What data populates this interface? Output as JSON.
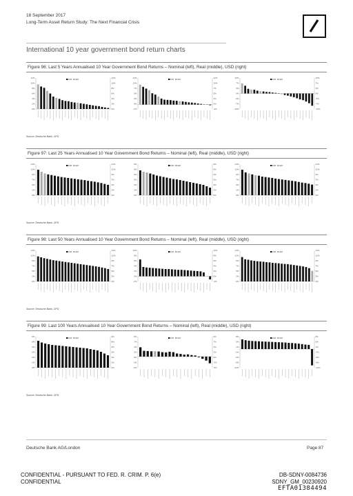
{
  "header": {
    "date": "18 September 2017",
    "subtitle": "Long-Term Asset Return Study: The Next Financial Crisis"
  },
  "section_title": "International 10 year government bond return charts",
  "figures": [
    {
      "title": "Figure 96: Last 5 Years Annualised 10 Year Government Bond Returns – Nominal (left), Real (middle), USD (right)",
      "source": "Source: Deutsche Bank, GFD"
    },
    {
      "title": "Figure 97: Last 25 Years Annualised 10 Year Government Bond Returns – Nominal (left), Real (middle), USD (right)",
      "source": "Source: Deutsche Bank, GFD"
    },
    {
      "title": "Figure 98: Last 50 Years Annualised 10 Year Government Bond Returns – Nominal (left), Real (middle), USD (right)",
      "source": "Source: Deutsche Bank, GFD"
    },
    {
      "title": "Figure 99: Last 100 Years Annualised 10 Year Government Bond Returns – Nominal (left), Real (middle), USD (right)",
      "source": "Source: Deutsche Bank, GFD"
    }
  ],
  "legend_labels": [
    "DM",
    "EM"
  ],
  "chart_data": [
    {
      "type": "bar",
      "panel": "F96 nominal",
      "ylim": [
        0,
        12
      ],
      "values": [
        9.5,
        8.7,
        8.2,
        7.0,
        6.0,
        4.8,
        4.3,
        3.9,
        3.4,
        3.1,
        3.0,
        2.7,
        2.5,
        2.4,
        2.2,
        2.0,
        1.8,
        1.6,
        1.4,
        1.2,
        1.1,
        0.8,
        0.6,
        0.4
      ],
      "colors_idx": [
        1,
        0,
        0,
        1,
        0,
        0,
        1,
        0,
        0,
        0,
        0,
        0,
        0,
        1,
        0,
        0,
        0,
        0,
        0,
        0,
        0,
        0,
        0,
        0
      ]
    },
    {
      "type": "bar",
      "panel": "F96 real",
      "ylim": [
        -2,
        12
      ],
      "values": [
        9.0,
        8.0,
        7.2,
        6.5,
        5.1,
        4.5,
        3.6,
        2.7,
        2.2,
        2.1,
        2.0,
        1.8,
        1.7,
        1.5,
        1.4,
        1.2,
        1.0,
        0.9,
        0.7,
        0.5,
        0.3,
        0.1,
        -0.1,
        -0.3
      ],
      "colors_idx": [
        1,
        0,
        0,
        1,
        0,
        0,
        1,
        0,
        0,
        0,
        0,
        0,
        0,
        1,
        0,
        0,
        0,
        0,
        0,
        0,
        0,
        0,
        0,
        0
      ]
    },
    {
      "type": "bar",
      "panel": "F96 usd",
      "ylim": [
        -10,
        10
      ],
      "values": [
        6.5,
        5.0,
        3.0,
        2.5,
        2.4,
        1.8,
        1.5,
        1.3,
        1.0,
        0.9,
        0.6,
        0.4,
        -0.2,
        -0.5,
        -1.0,
        -1.4,
        -1.9,
        -2.4,
        -3.1,
        -3.8,
        -4.3,
        -5.2,
        -6.3,
        -7.9
      ],
      "colors_idx": [
        1,
        0,
        0,
        1,
        0,
        0,
        1,
        0,
        0,
        0,
        0,
        0,
        0,
        1,
        0,
        0,
        0,
        0,
        0,
        0,
        0,
        0,
        0,
        0
      ]
    },
    {
      "type": "bar",
      "panel": "F97 nominal",
      "ylim": [
        0,
        14
      ],
      "values": [
        11.5,
        10.6,
        9.8,
        9.4,
        9.1,
        8.8,
        8.5,
        8.2,
        8.0,
        7.8,
        7.6,
        7.4,
        7.2,
        7.0,
        6.8,
        6.5,
        6.3,
        6.1,
        5.8,
        5.5,
        5.1,
        4.7
      ],
      "colors_idx": [
        0,
        1,
        1,
        0,
        0,
        0,
        0,
        0,
        0,
        0,
        0,
        0,
        0,
        0,
        0,
        0,
        0,
        0,
        0,
        0,
        0,
        0
      ]
    },
    {
      "type": "bar",
      "panel": "F97 real",
      "ylim": [
        0,
        9
      ],
      "values": [
        7.2,
        6.8,
        6.6,
        6.3,
        6.0,
        5.7,
        5.5,
        5.3,
        5.1,
        4.9,
        4.7,
        4.6,
        4.4,
        4.2,
        4.0,
        3.8,
        3.6,
        3.4,
        3.2,
        3.0,
        2.6,
        2.2
      ],
      "colors_idx": [
        0,
        1,
        1,
        0,
        0,
        0,
        0,
        0,
        0,
        0,
        0,
        0,
        0,
        0,
        0,
        0,
        0,
        0,
        0,
        0,
        0,
        0
      ]
    },
    {
      "type": "bar",
      "panel": "F97 usd",
      "ylim": [
        0,
        14
      ],
      "values": [
        11.5,
        10.3,
        9.8,
        9.4,
        9.0,
        8.8,
        8.4,
        8.2,
        8.0,
        7.8,
        7.5,
        7.3,
        7.1,
        6.9,
        6.7,
        6.5,
        6.3,
        6.0,
        5.7,
        5.5,
        5.2,
        4.8
      ],
      "colors_idx": [
        0,
        0,
        1,
        0,
        1,
        0,
        0,
        0,
        0,
        0,
        0,
        0,
        0,
        0,
        0,
        0,
        0,
        0,
        0,
        0,
        0,
        0
      ]
    },
    {
      "type": "bar",
      "panel": "F98 nominal",
      "ylim": [
        0,
        14
      ],
      "values": [
        11.3,
        10.9,
        10.5,
        10.2,
        9.9,
        9.6,
        9.4,
        9.2,
        9.0,
        8.8,
        8.6,
        8.4,
        8.2,
        8.0,
        7.8,
        7.6,
        7.4,
        7.2,
        7.0,
        6.8,
        6.6,
        6.3,
        6.0,
        5.6
      ],
      "colors_idx": [
        0,
        0,
        0,
        0,
        0,
        0,
        0,
        0,
        0,
        0,
        0,
        0,
        0,
        0,
        0,
        0,
        0,
        0,
        0,
        0,
        0,
        0,
        0,
        0
      ]
    },
    {
      "type": "bar",
      "panel": "F98 real",
      "ylim": [
        -2,
        10
      ],
      "values": [
        6.5,
        3.6,
        3.4,
        3.3,
        3.2,
        3.1,
        3.0,
        2.9,
        2.8,
        2.8,
        2.7,
        2.6,
        2.5,
        2.5,
        2.4,
        2.3,
        2.2,
        2.1,
        2.0,
        1.9,
        1.5,
        0.0,
        -1.2
      ],
      "colors_idx": [
        0,
        0,
        0,
        0,
        0,
        0,
        0,
        0,
        0,
        0,
        0,
        0,
        0,
        0,
        0,
        0,
        0,
        0,
        0,
        0,
        0,
        1,
        0
      ]
    },
    {
      "type": "bar",
      "panel": "F98 usd",
      "ylim": [
        0,
        14
      ],
      "values": [
        11.0,
        10.0,
        9.8,
        9.5,
        9.3,
        9.1,
        9.0,
        8.9,
        8.7,
        8.6,
        8.4,
        8.3,
        8.2,
        8.0,
        7.9,
        7.8,
        7.6,
        7.4,
        7.2,
        7.0,
        6.8,
        6.5,
        6.0,
        4.8
      ],
      "colors_idx": [
        0,
        0,
        0,
        0,
        0,
        0,
        0,
        0,
        0,
        0,
        0,
        0,
        0,
        0,
        0,
        0,
        0,
        0,
        0,
        0,
        0,
        0,
        0,
        1
      ]
    },
    {
      "type": "bar",
      "panel": "F99 nominal",
      "ylim": [
        0,
        9
      ],
      "values": [
        7.8,
        7.3,
        7.0,
        6.8,
        6.6,
        6.5,
        6.4,
        6.3,
        6.2,
        6.1,
        6.0,
        5.9,
        5.8,
        5.7,
        5.6,
        5.4,
        5.2,
        5.0,
        4.6,
        4.1,
        3.6
      ],
      "colors_idx": [
        0,
        0,
        0,
        0,
        0,
        0,
        0,
        0,
        0,
        0,
        0,
        0,
        0,
        0,
        0,
        0,
        0,
        0,
        0,
        0,
        0
      ]
    },
    {
      "type": "bar",
      "panel": "F99 real",
      "ylim": [
        -5,
        9
      ],
      "values": [
        4.2,
        2.6,
        2.5,
        2.4,
        2.4,
        2.3,
        2.0,
        1.9,
        2.2,
        2.0,
        1.4,
        1.2,
        0.9,
        1.0,
        0.7,
        0.5,
        -0.3,
        -1.0,
        -1.8,
        -3.0
      ],
      "colors_idx": [
        0,
        0,
        0,
        0,
        1,
        0,
        0,
        0,
        0,
        0,
        0,
        0,
        0,
        0,
        0,
        0,
        0,
        0,
        0,
        0
      ]
    },
    {
      "type": "bar",
      "panel": "F99 usd",
      "ylim": [
        -12,
        8
      ],
      "values": [
        6.2,
        5.7,
        5.4,
        5.2,
        5.1,
        5.0,
        4.9,
        4.8,
        4.7,
        4.6,
        4.5,
        4.4,
        4.3,
        4.2,
        4.0,
        3.9,
        3.7,
        3.5,
        3.2,
        2.9,
        2.7,
        -10.5
      ],
      "colors_idx": [
        0,
        0,
        0,
        0,
        0,
        0,
        0,
        0,
        0,
        0,
        0,
        0,
        0,
        0,
        0,
        0,
        0,
        0,
        0,
        0,
        0,
        0
      ]
    }
  ],
  "colors": {
    "dm": "#111111",
    "em": "#aaaaaa",
    "rule": "#888888"
  },
  "footer": {
    "left": "Deutsche Bank AG/London",
    "right": "Page 87"
  },
  "confidential": {
    "line1": "CONFIDENTIAL - PURSUANT TO FED. R. CRIM. P. 6(e)",
    "line2": "CONFIDENTIAL",
    "stamp1": "DB-SDNY-0084736",
    "stamp2": "SDNY_GM_00230920",
    "stamp3": "EFTA01384494"
  },
  "logo_icon": "deutsche-bank-slash-logo"
}
